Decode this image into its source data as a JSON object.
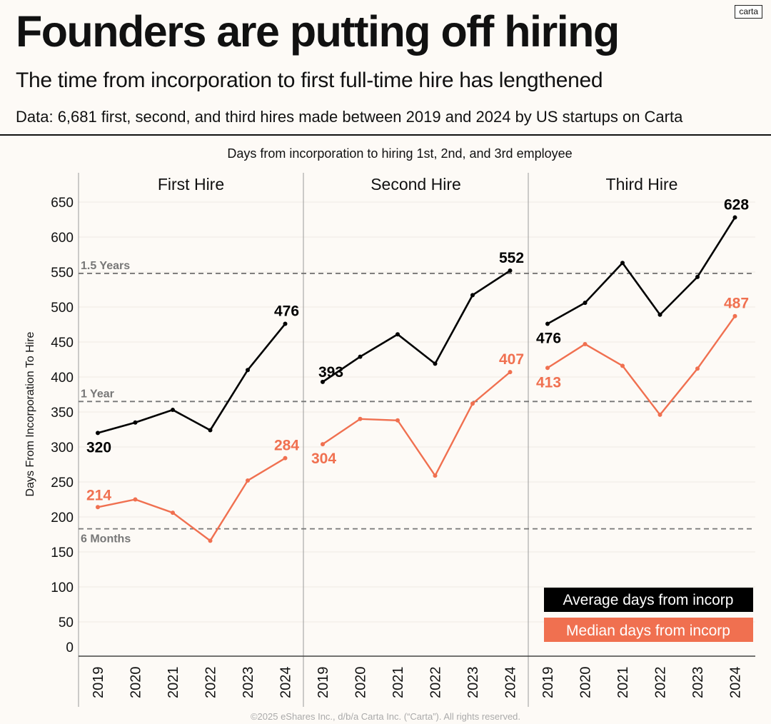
{
  "header": {
    "logo": "carta",
    "title": "Founders are putting off hiring",
    "subtitle": "The time from incorporation to first full-time hire has lengthened",
    "note": "Data: 6,681 first, second, and third hires made between 2019 and 2024 by US startups on Carta"
  },
  "footer": "©2025 eShares Inc., d/b/a Carta Inc. (“Carta”). All rights reserved.",
  "colors": {
    "average": "#000000",
    "median": "#f07050",
    "reference": "#777777",
    "background": "#fdfaf6"
  },
  "chart_data": {
    "type": "line",
    "title": "Days from incorporation to hiring 1st, 2nd, and 3rd employee",
    "xlabel": "",
    "ylabel": "Days From Incorporation To Hire",
    "ylim": [
      0,
      650
    ],
    "yticks": [
      0,
      50,
      100,
      150,
      200,
      250,
      300,
      350,
      400,
      450,
      500,
      550,
      600,
      650
    ],
    "x": [
      "2019",
      "2020",
      "2021",
      "2022",
      "2023",
      "2024"
    ],
    "grid": true,
    "legend": {
      "placement": "bottom-right",
      "entries": [
        "Average days from incorp",
        "Median days from incorp"
      ]
    },
    "reference_lines": [
      {
        "label": "1.5 Years",
        "value": 548
      },
      {
        "label": "1 Year",
        "value": 365
      },
      {
        "label": "6 Months",
        "value": 183
      }
    ],
    "panels": [
      {
        "name": "First Hire",
        "series": [
          {
            "name": "Average days from incorp",
            "values": [
              320,
              335,
              353,
              324,
              410,
              476
            ],
            "labeled": [
              320,
              476
            ]
          },
          {
            "name": "Median days from incorp",
            "values": [
              214,
              225,
              206,
              166,
              252,
              284
            ],
            "labeled": [
              214,
              284
            ]
          }
        ]
      },
      {
        "name": "Second Hire",
        "series": [
          {
            "name": "Average days from incorp",
            "values": [
              393,
              429,
              461,
              419,
              517,
              552
            ],
            "labeled": [
              393,
              552
            ]
          },
          {
            "name": "Median days from incorp",
            "values": [
              304,
              340,
              338,
              259,
              362,
              407
            ],
            "labeled": [
              304,
              407
            ]
          }
        ]
      },
      {
        "name": "Third Hire",
        "series": [
          {
            "name": "Average days from incorp",
            "values": [
              476,
              506,
              563,
              489,
              543,
              628
            ],
            "labeled": [
              476,
              628
            ]
          },
          {
            "name": "Median days from incorp",
            "values": [
              413,
              447,
              416,
              346,
              412,
              487
            ],
            "labeled": [
              413,
              487
            ]
          }
        ]
      }
    ]
  }
}
